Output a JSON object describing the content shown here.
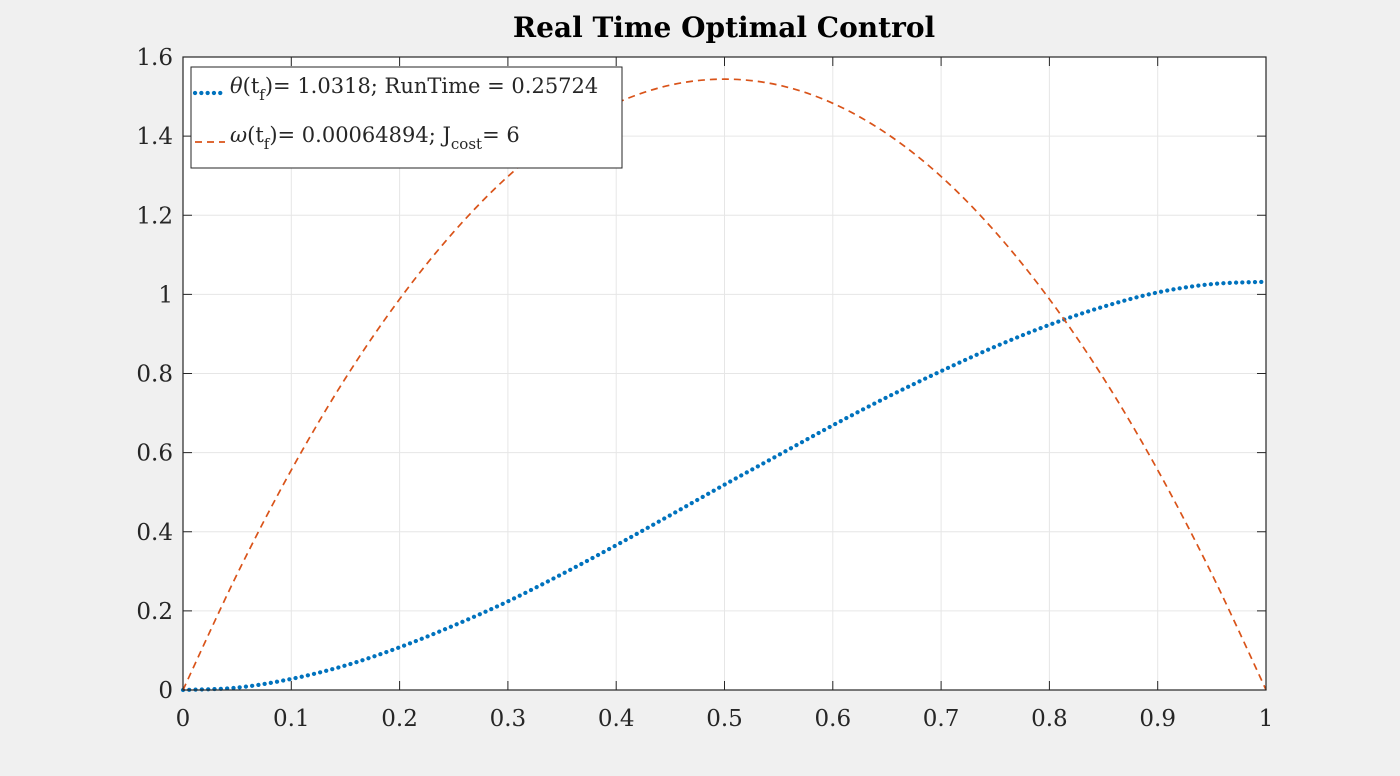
{
  "chart_data": {
    "type": "line",
    "title": "Real Time Optimal Control",
    "xlabel": "",
    "ylabel": "",
    "xlim": [
      0,
      1
    ],
    "ylim": [
      0,
      1.6
    ],
    "xticks": [
      0,
      0.1,
      0.2,
      0.3,
      0.4,
      0.5,
      0.6,
      0.7,
      0.8,
      0.9,
      1
    ],
    "xtick_labels": [
      "0",
      "0.1",
      "0.2",
      "0.3",
      "0.4",
      "0.5",
      "0.6",
      "0.7",
      "0.8",
      "0.9",
      "1"
    ],
    "yticks": [
      0,
      0.2,
      0.4,
      0.6,
      0.8,
      1,
      1.2,
      1.4,
      1.6
    ],
    "ytick_labels": [
      "0",
      "0.2",
      "0.4",
      "0.6",
      "0.8",
      "1",
      "1.2",
      "1.4",
      "1.6"
    ],
    "grid": true,
    "legend_position": "top-left",
    "series": [
      {
        "name": "θ(tf)= 1.0318; RunTime = 0.25724",
        "legend": {
          "symbol": "θ",
          "paren_open": "(t",
          "sub1": "f",
          "rest": ")= 1.0318; RunTime = 0.25724"
        },
        "color": "#0072BD",
        "style": "dotted",
        "x": [
          0,
          0.05,
          0.1,
          0.15,
          0.2,
          0.25,
          0.3,
          0.35,
          0.4,
          0.45,
          0.5,
          0.55,
          0.6,
          0.65,
          0.7,
          0.75,
          0.8,
          0.85,
          0.9,
          0.95,
          1.0
        ],
        "y": [
          0,
          0.006,
          0.028,
          0.062,
          0.108,
          0.163,
          0.224,
          0.293,
          0.366,
          0.442,
          0.519,
          0.594,
          0.669,
          0.74,
          0.806,
          0.868,
          0.923,
          0.969,
          1.005,
          1.026,
          1.0318
        ]
      },
      {
        "name": "ω(tf)= 0.00064894; Jcost= 6",
        "legend": {
          "symbol": "ω",
          "paren_open": "(t",
          "sub1": "f",
          "mid": ")= 0.00064894; J",
          "sub2": "cost",
          "rest": "= 6"
        },
        "color": "#D95319",
        "style": "dashed",
        "x": [
          0,
          0.05,
          0.1,
          0.15,
          0.2,
          0.25,
          0.3,
          0.35,
          0.4,
          0.45,
          0.5,
          0.55,
          0.6,
          0.65,
          0.7,
          0.75,
          0.8,
          0.85,
          0.9,
          0.95,
          1.0
        ],
        "y": [
          0,
          0.293,
          0.556,
          0.788,
          0.988,
          1.158,
          1.298,
          1.406,
          1.483,
          1.529,
          1.544,
          1.529,
          1.483,
          1.406,
          1.298,
          1.158,
          0.988,
          0.788,
          0.556,
          0.293,
          0.0006
        ]
      }
    ]
  }
}
